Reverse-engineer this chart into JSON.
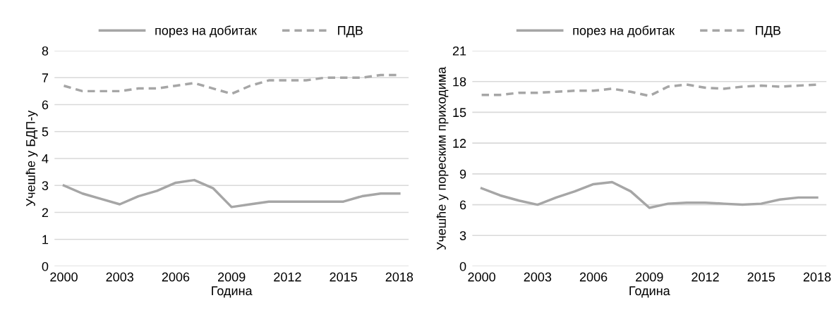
{
  "chart_data": [
    {
      "type": "line",
      "xlabel": "Година",
      "ylabel": "Учешће у БДП-у",
      "categories": [
        "2000",
        null,
        null,
        "2003",
        null,
        null,
        "2006",
        null,
        null,
        "2009",
        null,
        null,
        "2012",
        null,
        null,
        "2015",
        null,
        null,
        "2018"
      ],
      "series": [
        {
          "name": "порез на добитак",
          "color": "#a6a6a6",
          "line_style": "solid",
          "values": [
            3.0,
            2.7,
            2.5,
            2.3,
            2.6,
            2.8,
            3.1,
            3.2,
            2.9,
            2.2,
            2.3,
            2.4,
            2.4,
            2.4,
            2.4,
            2.4,
            2.6,
            2.7,
            2.7
          ]
        },
        {
          "name": "ПДВ",
          "color": "#a6a6a6",
          "line_style": "dashed",
          "values": [
            6.7,
            6.5,
            6.5,
            6.5,
            6.6,
            6.6,
            6.7,
            6.8,
            6.6,
            6.4,
            6.7,
            6.9,
            6.9,
            6.9,
            7.0,
            7.0,
            7.0,
            7.1,
            7.1
          ]
        }
      ],
      "ylim": [
        0,
        8
      ],
      "yticks": [
        0,
        1,
        2,
        3,
        4,
        5,
        6,
        7,
        8
      ],
      "grid": "y",
      "legend": "top",
      "marker": "none"
    },
    {
      "type": "line",
      "xlabel": "Година",
      "ylabel": "Учешће у пореским приходима",
      "categories": [
        "2000",
        null,
        null,
        "2003",
        null,
        null,
        "2006",
        null,
        null,
        "2009",
        null,
        null,
        "2012",
        null,
        null,
        "2015",
        null,
        null,
        "2018"
      ],
      "series": [
        {
          "name": "порез на добитак",
          "color": "#a6a6a6",
          "line_style": "solid",
          "values": [
            7.6,
            6.9,
            6.4,
            6.0,
            6.7,
            7.3,
            8.0,
            8.2,
            7.3,
            5.7,
            6.1,
            6.2,
            6.2,
            6.1,
            6.0,
            6.1,
            6.5,
            6.7,
            6.7
          ]
        },
        {
          "name": "ПДВ",
          "color": "#a6a6a6",
          "line_style": "dashed",
          "values": [
            16.7,
            16.7,
            16.9,
            16.9,
            17.0,
            17.1,
            17.1,
            17.3,
            17.0,
            16.6,
            17.5,
            17.7,
            17.4,
            17.3,
            17.5,
            17.6,
            17.5,
            17.6,
            17.7
          ]
        }
      ],
      "ylim": [
        0,
        21
      ],
      "yticks": [
        0,
        3,
        6,
        9,
        12,
        15,
        18,
        21
      ],
      "grid": "y",
      "legend": "top",
      "marker": "none"
    }
  ]
}
